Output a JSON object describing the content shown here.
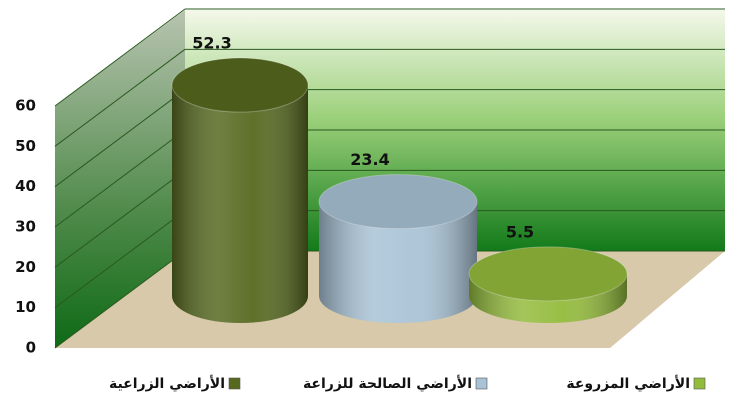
{
  "chart_data": {
    "type": "bar",
    "categories": [
      null
    ],
    "series": [
      {
        "name": "الأراضي الزراعية",
        "color": "#56691f",
        "values": [
          52.3
        ]
      },
      {
        "name": "الأراضي الصالحة للزراعة",
        "color": "#a9c3d6",
        "values": [
          23.4
        ]
      },
      {
        "name": "الأراضي المزروعة",
        "color": "#93bb3c",
        "values": [
          5.5
        ]
      }
    ],
    "ylim": [
      0,
      60
    ],
    "yticks": [
      0,
      10,
      20,
      30,
      40,
      50,
      60
    ],
    "grid": true,
    "legend": "bottom"
  }
}
